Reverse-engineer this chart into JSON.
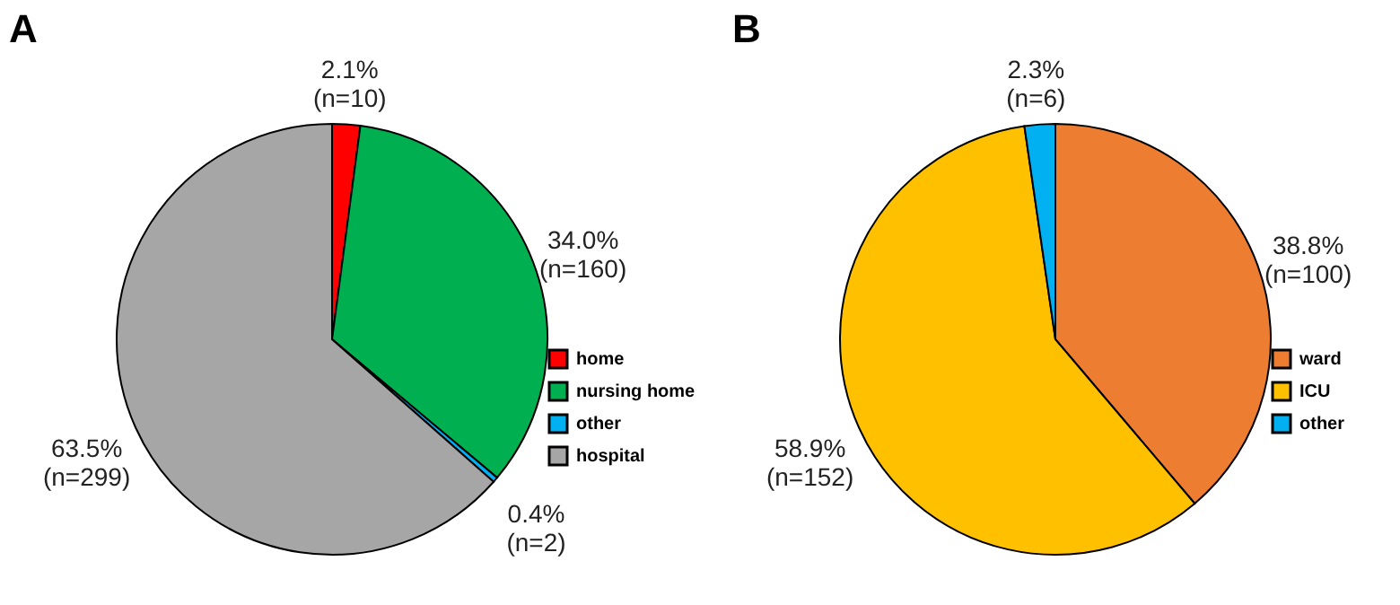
{
  "chart_data": [
    {
      "type": "pie",
      "title": "A",
      "categories": [
        "home",
        "nursing home",
        "other",
        "hospital"
      ],
      "values": [
        2.1,
        34.0,
        0.4,
        63.5
      ],
      "colors": [
        "#ff0000",
        "#00b050",
        "#00b0f0",
        "#a6a6a6"
      ],
      "value_labels": [
        "2.1% (n=10)",
        "34.0% (n=160)",
        "0.4% (n=2)",
        "63.5% (n=299)"
      ],
      "legend": "right"
    },
    {
      "type": "pie",
      "title": "B",
      "categories": [
        "ward",
        "ICU",
        "other"
      ],
      "values": [
        38.8,
        58.9,
        2.3
      ],
      "colors": [
        "#ed7d31",
        "#ffc000",
        "#00b0f0"
      ],
      "value_labels": [
        "38.8% (n=100)",
        "58.9% (n=152)",
        "2.3% (n=6)"
      ],
      "legend": "right"
    }
  ]
}
